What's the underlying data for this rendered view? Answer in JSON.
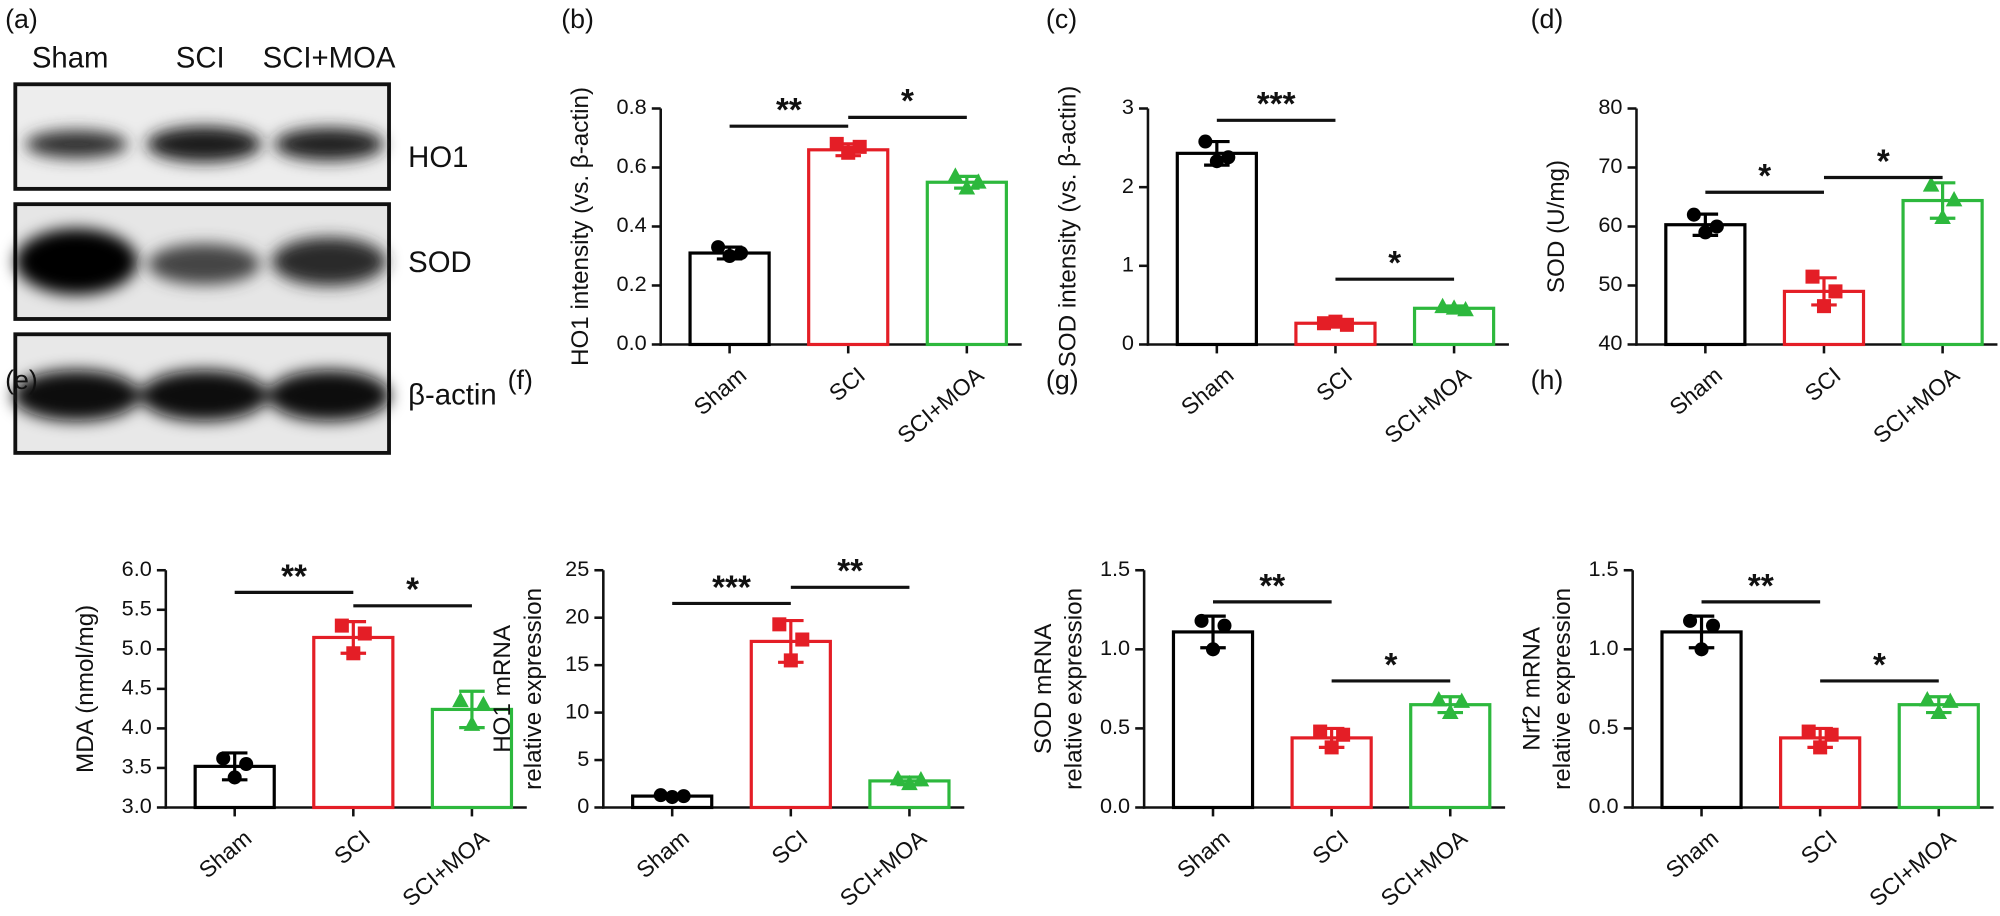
{
  "blot": {
    "panel": "(a)",
    "lanes": [
      "Sham",
      "SCI",
      "SCI+MOA"
    ],
    "bands": [
      "HO1",
      "SOD",
      "β-actin"
    ]
  },
  "chart_data": [
    {
      "type": "bar",
      "panel": "(b)",
      "ylabel": [
        "HO1 intensity (vs. β-actin)"
      ],
      "categories": [
        "Sham",
        "SCI",
        "SCI+MOA"
      ],
      "values": [
        0.31,
        0.66,
        0.55
      ],
      "errors": [
        0.02,
        0.02,
        0.02
      ],
      "points": [
        [
          0.33,
          0.3,
          0.31
        ],
        [
          0.68,
          0.65,
          0.67
        ],
        [
          0.57,
          0.53,
          0.55
        ]
      ],
      "colors": [
        "#000000",
        "#e41e26",
        "#2db83d"
      ],
      "markers": [
        "circle",
        "square",
        "triangle"
      ],
      "ylim": [
        0,
        0.8
      ],
      "yticks": [
        {
          "value": 0,
          "label": "0.0"
        },
        0.2,
        0.4,
        0.6,
        0.8
      ],
      "annotations": [
        {
          "text": "**",
          "from": "Sham",
          "to": "SCI",
          "y": 0.74
        },
        {
          "text": "*",
          "from": "SCI",
          "to": "SCI+MOA",
          "y": 0.77
        }
      ]
    },
    {
      "type": "bar",
      "panel": "(c)",
      "ylabel": [
        "SOD intensity (vs.  β-actin)"
      ],
      "categories": [
        "Sham",
        "SCI",
        "SCI+MOA"
      ],
      "values": [
        2.43,
        0.27,
        0.46
      ],
      "errors": [
        0.15,
        0.03,
        0.03
      ],
      "points": [
        [
          2.58,
          2.33,
          2.38
        ],
        [
          0.27,
          0.29,
          0.25
        ],
        [
          0.48,
          0.46,
          0.44
        ]
      ],
      "colors": [
        "#000000",
        "#e41e26",
        "#2db83d"
      ],
      "markers": [
        "circle",
        "square",
        "triangle"
      ],
      "ylim": [
        0,
        3
      ],
      "yticks": [
        0,
        1,
        2,
        3
      ],
      "annotations": [
        {
          "text": "***",
          "from": "Sham",
          "to": "SCI",
          "y": 2.85
        },
        {
          "text": "*",
          "from": "SCI",
          "to": "SCI+MOA",
          "y": 0.83
        }
      ]
    },
    {
      "type": "bar",
      "panel": "(d)",
      "ylabel": [
        "SOD (U/mg)"
      ],
      "categories": [
        "Sham",
        "SCI",
        "SCI+MOA"
      ],
      "values": [
        60.3,
        49,
        64.4
      ],
      "errors": [
        1.8,
        2.3,
        3
      ],
      "points": [
        [
          62,
          59,
          60
        ],
        [
          51.5,
          46.5,
          49
        ],
        [
          67,
          61.5,
          64.5
        ]
      ],
      "colors": [
        "#000000",
        "#e41e26",
        "#2db83d"
      ],
      "markers": [
        "circle",
        "square",
        "triangle"
      ],
      "ylim": [
        40,
        80
      ],
      "yticks": [
        40,
        50,
        60,
        70,
        80
      ],
      "annotations": [
        {
          "text": "*",
          "from": "Sham",
          "to": "SCI",
          "y": 65.8
        },
        {
          "text": "*",
          "from": "SCI",
          "to": "SCI+MOA",
          "y": 68.3
        }
      ]
    },
    {
      "type": "bar",
      "panel": "(e)",
      "ylabel": [
        "MDA (nmol/mg)"
      ],
      "categories": [
        "Sham",
        "SCI",
        "SCI+MOA"
      ],
      "values": [
        3.52,
        5.15,
        4.24
      ],
      "errors": [
        0.17,
        0.2,
        0.23
      ],
      "points": [
        [
          3.62,
          3.38,
          3.55
        ],
        [
          5.3,
          4.95,
          5.2
        ],
        [
          4.35,
          4.05,
          4.3
        ]
      ],
      "colors": [
        "#000000",
        "#e41e26",
        "#2db83d"
      ],
      "markers": [
        "circle",
        "square",
        "triangle"
      ],
      "ylim": [
        3,
        6
      ],
      "yticks": [
        {
          "value": 3,
          "label": "3.0"
        },
        3.5,
        {
          "value": 4,
          "label": "4.0"
        },
        4.5,
        {
          "value": 5,
          "label": "5.0"
        },
        5.5,
        {
          "value": 6,
          "label": "6.0"
        }
      ],
      "annotations": [
        {
          "text": "**",
          "from": "Sham",
          "to": "SCI",
          "y": 5.72
        },
        {
          "text": "*",
          "from": "SCI",
          "to": "SCI+MOA",
          "y": 5.55
        }
      ]
    },
    {
      "type": "bar",
      "panel": "(f)",
      "ylabel": [
        "HO1 mRNA",
        "relative expression"
      ],
      "categories": [
        "Sham",
        "SCI",
        "SCI+MOA"
      ],
      "values": [
        1.2,
        17.5,
        2.8
      ],
      "errors": [
        0.2,
        2.2,
        0.4
      ],
      "points": [
        [
          1.3,
          1.1,
          1.2
        ],
        [
          19.3,
          15.5,
          17.7
        ],
        [
          3.0,
          2.5,
          2.9
        ]
      ],
      "colors": [
        "#000000",
        "#e41e26",
        "#2db83d"
      ],
      "markers": [
        "circle",
        "square",
        "triangle"
      ],
      "ylim": [
        0,
        25
      ],
      "yticks": [
        0,
        5,
        10,
        15,
        20,
        25
      ],
      "annotations": [
        {
          "text": "***",
          "from": "Sham",
          "to": "SCI",
          "y": 21.5
        },
        {
          "text": "**",
          "from": "SCI",
          "to": "SCI+MOA",
          "y": 23.2
        }
      ]
    },
    {
      "type": "bar",
      "panel": "(g)",
      "ylabel": [
        "SOD mRNA",
        "relative expression"
      ],
      "categories": [
        "Sham",
        "SCI",
        "SCI+MOA"
      ],
      "values": [
        1.11,
        0.44,
        0.65
      ],
      "errors": [
        0.1,
        0.06,
        0.05
      ],
      "points": [
        [
          1.18,
          1.0,
          1.15
        ],
        [
          0.48,
          0.38,
          0.46
        ],
        [
          0.68,
          0.6,
          0.67
        ]
      ],
      "colors": [
        "#000000",
        "#e41e26",
        "#2db83d"
      ],
      "markers": [
        "circle",
        "square",
        "triangle"
      ],
      "ylim": [
        0,
        1.5
      ],
      "yticks": [
        {
          "value": 0,
          "label": "0.0"
        },
        0.5,
        {
          "value": 1,
          "label": "1.0"
        },
        1.5
      ],
      "annotations": [
        {
          "text": "**",
          "from": "Sham",
          "to": "SCI",
          "y": 1.3
        },
        {
          "text": "*",
          "from": "SCI",
          "to": "SCI+MOA",
          "y": 0.8
        }
      ]
    },
    {
      "type": "bar",
      "panel": "(h)",
      "ylabel": [
        "Nrf2 mRNA",
        "relative expression"
      ],
      "categories": [
        "Sham",
        "SCI",
        "SCI+MOA"
      ],
      "values": [
        1.11,
        0.44,
        0.65
      ],
      "errors": [
        0.1,
        0.06,
        0.05
      ],
      "points": [
        [
          1.18,
          1.0,
          1.15
        ],
        [
          0.48,
          0.38,
          0.46
        ],
        [
          0.68,
          0.6,
          0.67
        ]
      ],
      "colors": [
        "#000000",
        "#e41e26",
        "#2db83d"
      ],
      "markers": [
        "circle",
        "square",
        "triangle"
      ],
      "ylim": [
        0,
        1.5
      ],
      "yticks": [
        {
          "value": 0,
          "label": "0.0"
        },
        0.5,
        {
          "value": 1,
          "label": "1.0"
        },
        1.5
      ],
      "annotations": [
        {
          "text": "**",
          "from": "Sham",
          "to": "SCI",
          "y": 1.3
        },
        {
          "text": "*",
          "from": "SCI",
          "to": "SCI+MOA",
          "y": 0.8
        }
      ]
    }
  ]
}
